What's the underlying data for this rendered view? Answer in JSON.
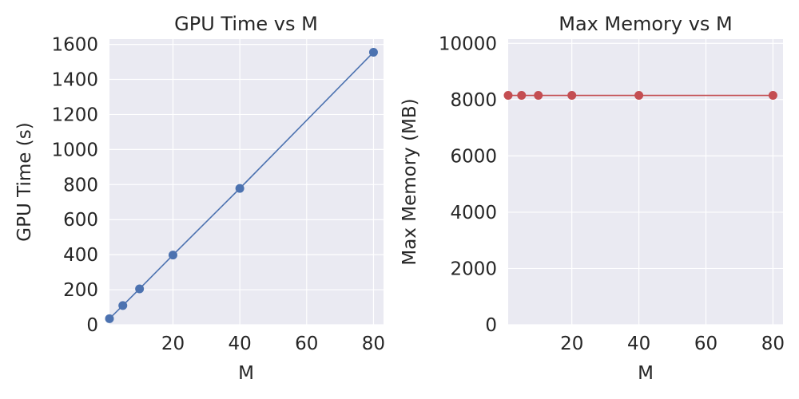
{
  "colors": {
    "series_gpu": "#4C72B0",
    "series_mem": "#C44E52",
    "plot_background": "#EAEAF2",
    "grid": "#FFFFFF"
  },
  "chart_data": [
    {
      "type": "line",
      "title": "GPU Time vs M",
      "xlabel": "M",
      "ylabel": "GPU Time (s)",
      "xlim": [
        1,
        83
      ],
      "ylim": [
        0,
        1630
      ],
      "xticks": [
        20,
        40,
        60,
        80
      ],
      "yticks": [
        0,
        200,
        400,
        600,
        800,
        1000,
        1200,
        1400,
        1600
      ],
      "grid": true,
      "series": [
        {
          "color": "#4C72B0",
          "marker": "circle",
          "x": [
            1,
            5,
            10,
            20,
            40,
            80
          ],
          "y": [
            35,
            110,
            205,
            398,
            778,
            1555
          ]
        }
      ]
    },
    {
      "type": "line",
      "title": "Max Memory vs M",
      "xlabel": "M",
      "ylabel": "Max Memory (MB)",
      "xlim": [
        1,
        83
      ],
      "ylim": [
        0,
        10150
      ],
      "xticks": [
        20,
        40,
        60,
        80
      ],
      "yticks": [
        0,
        2000,
        4000,
        6000,
        8000,
        10000
      ],
      "grid": true,
      "series": [
        {
          "color": "#C44E52",
          "marker": "circle",
          "x": [
            1,
            5,
            10,
            20,
            40,
            80
          ],
          "y": [
            8150,
            8150,
            8150,
            8150,
            8150,
            8150
          ]
        }
      ]
    }
  ]
}
